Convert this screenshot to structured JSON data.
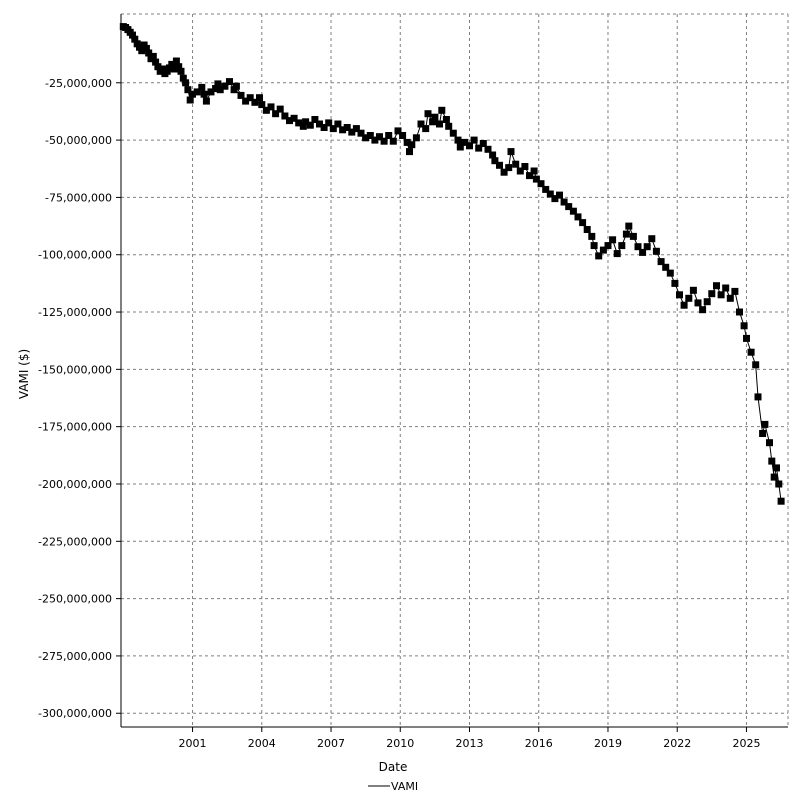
{
  "chart_data": {
    "type": "line",
    "xlabel": "Date",
    "ylabel": "VAMI ($)",
    "x_ticks": [
      "2001",
      "2004",
      "2007",
      "2010",
      "2013",
      "2016",
      "2019",
      "2022",
      "2025"
    ],
    "y_ticks": [
      "-25,000,000",
      "-50,000,000",
      "-75,000,000",
      "-100,000,000",
      "-125,000,000",
      "-150,000,000",
      "-175,000,000",
      "-200,000,000",
      "-225,000,000",
      "-250,000,000",
      "-275,000,000",
      "-300,000,000"
    ],
    "xlim": [
      1997.9,
      2026.8
    ],
    "ylim": [
      -306000000,
      5000000
    ],
    "grid": true,
    "legend": "bottom-center",
    "marker": "square",
    "series": [
      {
        "name": "VAMI",
        "color": "#000000",
        "points": [
          [
            1998.0,
            -500000
          ],
          [
            1998.1,
            -900000
          ],
          [
            1998.2,
            -1800000
          ],
          [
            1998.3,
            -3000000
          ],
          [
            1998.4,
            -4200000
          ],
          [
            1998.5,
            -6000000
          ],
          [
            1998.6,
            -8000000
          ],
          [
            1998.7,
            -9500000
          ],
          [
            1998.8,
            -11000000
          ],
          [
            1998.9,
            -8500000
          ],
          [
            1999.0,
            -10000000
          ],
          [
            1999.1,
            -12000000
          ],
          [
            1999.2,
            -14500000
          ],
          [
            1999.3,
            -13500000
          ],
          [
            1999.4,
            -16000000
          ],
          [
            1999.5,
            -18000000
          ],
          [
            1999.6,
            -20000000
          ],
          [
            1999.7,
            -19000000
          ],
          [
            1999.8,
            -21000000
          ],
          [
            1999.9,
            -20000000
          ],
          [
            2000.0,
            -18500000
          ],
          [
            2000.1,
            -17000000
          ],
          [
            2000.2,
            -19000000
          ],
          [
            2000.3,
            -15500000
          ],
          [
            2000.4,
            -18000000
          ],
          [
            2000.5,
            -20000000
          ],
          [
            2000.6,
            -23000000
          ],
          [
            2000.7,
            -25000000
          ],
          [
            2000.8,
            -28000000
          ],
          [
            2000.9,
            -32500000
          ],
          [
            2001.0,
            -30000000
          ],
          [
            2001.2,
            -29000000
          ],
          [
            2001.4,
            -27000000
          ],
          [
            2001.5,
            -30000000
          ],
          [
            2001.6,
            -33000000
          ],
          [
            2001.8,
            -29000000
          ],
          [
            2002.0,
            -27500000
          ],
          [
            2002.1,
            -25500000
          ],
          [
            2002.2,
            -28000000
          ],
          [
            2002.4,
            -26500000
          ],
          [
            2002.6,
            -24500000
          ],
          [
            2002.8,
            -28000000
          ],
          [
            2002.9,
            -26500000
          ],
          [
            2003.1,
            -30500000
          ],
          [
            2003.3,
            -33000000
          ],
          [
            2003.5,
            -31500000
          ],
          [
            2003.7,
            -33500000
          ],
          [
            2003.9,
            -31500000
          ],
          [
            2004.0,
            -34500000
          ],
          [
            2004.2,
            -37000000
          ],
          [
            2004.4,
            -35500000
          ],
          [
            2004.6,
            -38500000
          ],
          [
            2004.8,
            -36500000
          ],
          [
            2005.0,
            -39500000
          ],
          [
            2005.2,
            -41500000
          ],
          [
            2005.4,
            -40500000
          ],
          [
            2005.6,
            -42500000
          ],
          [
            2005.8,
            -44000000
          ],
          [
            2005.9,
            -42000000
          ],
          [
            2006.1,
            -43500000
          ],
          [
            2006.3,
            -41000000
          ],
          [
            2006.5,
            -43000000
          ],
          [
            2006.7,
            -44500000
          ],
          [
            2006.9,
            -42500000
          ],
          [
            2007.1,
            -45000000
          ],
          [
            2007.3,
            -43000000
          ],
          [
            2007.5,
            -45500000
          ],
          [
            2007.7,
            -44500000
          ],
          [
            2007.9,
            -46500000
          ],
          [
            2008.1,
            -45000000
          ],
          [
            2008.3,
            -47000000
          ],
          [
            2008.5,
            -49000000
          ],
          [
            2008.7,
            -48000000
          ],
          [
            2008.9,
            -50000000
          ],
          [
            2009.1,
            -48500000
          ],
          [
            2009.3,
            -50500000
          ],
          [
            2009.5,
            -48000000
          ],
          [
            2009.7,
            -50500000
          ],
          [
            2009.9,
            -46000000
          ],
          [
            2010.1,
            -48000000
          ],
          [
            2010.3,
            -51000000
          ],
          [
            2010.4,
            -55000000
          ],
          [
            2010.5,
            -52000000
          ],
          [
            2010.7,
            -49000000
          ],
          [
            2010.9,
            -43000000
          ],
          [
            2011.1,
            -45000000
          ],
          [
            2011.2,
            -38500000
          ],
          [
            2011.4,
            -42000000
          ],
          [
            2011.5,
            -40000000
          ],
          [
            2011.7,
            -43000000
          ],
          [
            2011.8,
            -37000000
          ],
          [
            2012.0,
            -41000000
          ],
          [
            2012.1,
            -44000000
          ],
          [
            2012.3,
            -47000000
          ],
          [
            2012.5,
            -50000000
          ],
          [
            2012.6,
            -53000000
          ],
          [
            2012.8,
            -51000000
          ],
          [
            2013.0,
            -52500000
          ],
          [
            2013.2,
            -50000000
          ],
          [
            2013.4,
            -53500000
          ],
          [
            2013.6,
            -51500000
          ],
          [
            2013.8,
            -54000000
          ],
          [
            2014.0,
            -56500000
          ],
          [
            2014.1,
            -59000000
          ],
          [
            2014.3,
            -61000000
          ],
          [
            2014.5,
            -64000000
          ],
          [
            2014.7,
            -62000000
          ],
          [
            2014.8,
            -55000000
          ],
          [
            2015.0,
            -60500000
          ],
          [
            2015.2,
            -63500000
          ],
          [
            2015.4,
            -61500000
          ],
          [
            2015.6,
            -65500000
          ],
          [
            2015.8,
            -63500000
          ],
          [
            2015.9,
            -67000000
          ],
          [
            2016.1,
            -69000000
          ],
          [
            2016.3,
            -71500000
          ],
          [
            2016.5,
            -73500000
          ],
          [
            2016.7,
            -75500000
          ],
          [
            2016.9,
            -74000000
          ],
          [
            2017.1,
            -77000000
          ],
          [
            2017.3,
            -79000000
          ],
          [
            2017.5,
            -81000000
          ],
          [
            2017.7,
            -83500000
          ],
          [
            2017.9,
            -86000000
          ],
          [
            2018.1,
            -89000000
          ],
          [
            2018.3,
            -92000000
          ],
          [
            2018.4,
            -96000000
          ],
          [
            2018.6,
            -100500000
          ],
          [
            2018.8,
            -98000000
          ],
          [
            2019.0,
            -96000000
          ],
          [
            2019.2,
            -93500000
          ],
          [
            2019.4,
            -99500000
          ],
          [
            2019.6,
            -96000000
          ],
          [
            2019.8,
            -91000000
          ],
          [
            2019.9,
            -87500000
          ],
          [
            2020.1,
            -92000000
          ],
          [
            2020.3,
            -96500000
          ],
          [
            2020.5,
            -99000000
          ],
          [
            2020.7,
            -96500000
          ],
          [
            2020.9,
            -93000000
          ],
          [
            2021.1,
            -98500000
          ],
          [
            2021.3,
            -103000000
          ],
          [
            2021.5,
            -105500000
          ],
          [
            2021.7,
            -108000000
          ],
          [
            2021.9,
            -112500000
          ],
          [
            2022.1,
            -117500000
          ],
          [
            2022.3,
            -122000000
          ],
          [
            2022.5,
            -119000000
          ],
          [
            2022.7,
            -115500000
          ],
          [
            2022.9,
            -121000000
          ],
          [
            2023.1,
            -124000000
          ],
          [
            2023.3,
            -120500000
          ],
          [
            2023.5,
            -117000000
          ],
          [
            2023.7,
            -113500000
          ],
          [
            2023.9,
            -117500000
          ],
          [
            2024.1,
            -114500000
          ],
          [
            2024.3,
            -119000000
          ],
          [
            2024.5,
            -116000000
          ],
          [
            2024.7,
            -125000000
          ],
          [
            2024.9,
            -131000000
          ],
          [
            2025.0,
            -136500000
          ],
          [
            2025.2,
            -142500000
          ],
          [
            2025.4,
            -148000000
          ],
          [
            2025.5,
            -162000000
          ],
          [
            2025.7,
            -178000000
          ],
          [
            2025.8,
            -174000000
          ],
          [
            2026.0,
            -182000000
          ],
          [
            2026.1,
            -190000000
          ],
          [
            2026.2,
            -197000000
          ],
          [
            2026.3,
            -193000000
          ],
          [
            2026.4,
            -200000000
          ],
          [
            2026.5,
            -207500000
          ]
        ]
      }
    ]
  }
}
